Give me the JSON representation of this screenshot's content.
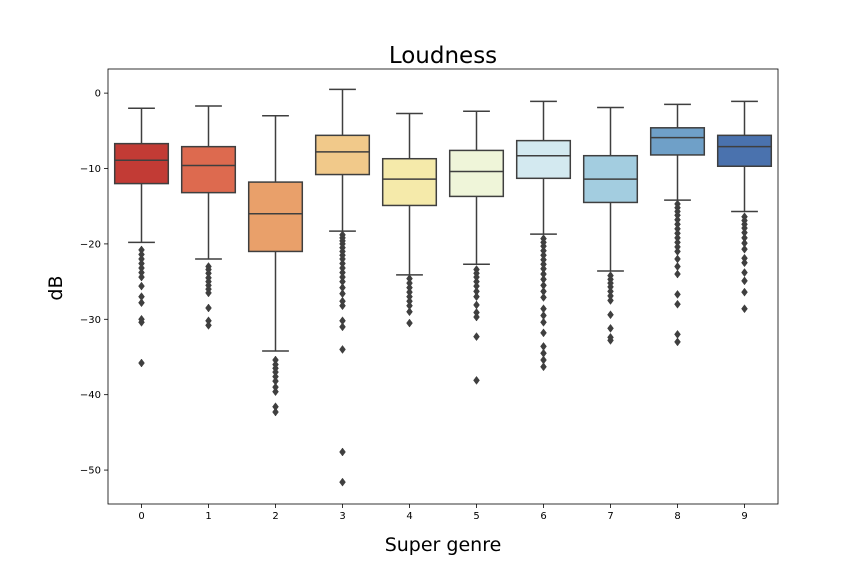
{
  "chart_data": {
    "type": "box",
    "title": "Loudness",
    "xlabel": "Super genre",
    "ylabel": "dB",
    "categories": [
      "0",
      "1",
      "2",
      "3",
      "4",
      "5",
      "6",
      "7",
      "8",
      "9"
    ],
    "ylim": [
      -54.5,
      3.2
    ],
    "yticks": [
      0,
      -10,
      -20,
      -30,
      -40,
      -50
    ],
    "ytick_labels": [
      "0",
      "−10",
      "−20",
      "−30",
      "−40",
      "−50"
    ],
    "grid": false,
    "colors": [
      "#c23b35",
      "#dd6a4f",
      "#e9a06a",
      "#f1c98a",
      "#f5eaaa",
      "#eff5d9",
      "#d3e9f0",
      "#a3cde0",
      "#6fa0c8",
      "#4a72ae"
    ],
    "edge_color": "#3f3f3f",
    "boxes": [
      {
        "category": "0",
        "whislo": -19.8,
        "q1": -12.0,
        "med": -8.9,
        "q3": -6.7,
        "whishi": -2.0,
        "fliers": [
          -20.8,
          -21.4,
          -22.0,
          -22.6,
          -23.2,
          -23.8,
          -24.4,
          -25.6,
          -27.0,
          -27.8,
          -30.0,
          -30.4,
          -35.8
        ]
      },
      {
        "category": "1",
        "whislo": -22.0,
        "q1": -13.2,
        "med": -9.6,
        "q3": -7.1,
        "whishi": -1.7,
        "fliers": [
          -23.0,
          -23.4,
          -23.9,
          -24.5,
          -25.0,
          -25.5,
          -26.0,
          -26.5,
          -28.5,
          -30.2,
          -30.8
        ]
      },
      {
        "category": "2",
        "whislo": -34.2,
        "q1": -21.0,
        "med": -16.0,
        "q3": -11.8,
        "whishi": -3.0,
        "fliers": [
          -35.4,
          -36.0,
          -36.5,
          -37.0,
          -37.6,
          -38.2,
          -39.0,
          -39.6,
          -41.6,
          -42.3
        ]
      },
      {
        "category": "3",
        "whislo": -18.3,
        "q1": -10.8,
        "med": -7.8,
        "q3": -5.6,
        "whishi": 0.5,
        "fliers": [
          -18.8,
          -19.2,
          -19.6,
          -20.0,
          -20.5,
          -21.0,
          -21.5,
          -22.0,
          -22.6,
          -23.2,
          -23.8,
          -24.4,
          -25.0,
          -25.8,
          -26.6,
          -27.6,
          -28.2,
          -30.2,
          -31.0,
          -34.0,
          -47.6,
          -51.6
        ]
      },
      {
        "category": "4",
        "whislo": -24.1,
        "q1": -14.9,
        "med": -11.4,
        "q3": -8.7,
        "whishi": -2.7,
        "fliers": [
          -24.6,
          -25.2,
          -25.8,
          -26.4,
          -27.0,
          -27.6,
          -28.2,
          -29.0,
          -30.5
        ]
      },
      {
        "category": "5",
        "whislo": -22.7,
        "q1": -13.7,
        "med": -10.4,
        "q3": -7.6,
        "whishi": -2.4,
        "fliers": [
          -23.4,
          -23.9,
          -24.4,
          -25.0,
          -25.6,
          -26.3,
          -27.0,
          -28.1,
          -29.1,
          -29.7,
          -32.3,
          -38.1
        ]
      },
      {
        "category": "6",
        "whislo": -18.7,
        "q1": -11.3,
        "med": -8.3,
        "q3": -6.3,
        "whishi": -1.1,
        "fliers": [
          -19.3,
          -19.8,
          -20.3,
          -20.9,
          -21.5,
          -22.1,
          -22.7,
          -23.3,
          -24.0,
          -24.7,
          -25.5,
          -26.3,
          -27.1,
          -28.6,
          -29.5,
          -30.4,
          -31.8,
          -33.6,
          -34.5,
          -35.4,
          -36.3
        ]
      },
      {
        "category": "7",
        "whislo": -23.6,
        "q1": -14.5,
        "med": -11.4,
        "q3": -8.3,
        "whishi": -1.9,
        "fliers": [
          -24.2,
          -24.7,
          -25.2,
          -25.7,
          -26.3,
          -26.9,
          -27.5,
          -29.4,
          -31.2,
          -32.4,
          -32.8
        ]
      },
      {
        "category": "8",
        "whislo": -14.2,
        "q1": -8.2,
        "med": -5.9,
        "q3": -4.6,
        "whishi": -1.5,
        "fliers": [
          -14.7,
          -15.2,
          -15.7,
          -16.2,
          -16.8,
          -17.4,
          -18.0,
          -18.6,
          -19.2,
          -19.8,
          -20.4,
          -21.0,
          -22.0,
          -23.0,
          -24.0,
          -26.7,
          -28.0,
          -32.0,
          -33.0
        ]
      },
      {
        "category": "9",
        "whislo": -15.7,
        "q1": -9.7,
        "med": -7.1,
        "q3": -5.6,
        "whishi": -1.1,
        "fliers": [
          -16.4,
          -16.9,
          -17.4,
          -17.9,
          -18.5,
          -19.2,
          -19.9,
          -20.7,
          -21.9,
          -22.5,
          -23.8,
          -24.9,
          -26.4,
          -28.6
        ]
      }
    ]
  }
}
